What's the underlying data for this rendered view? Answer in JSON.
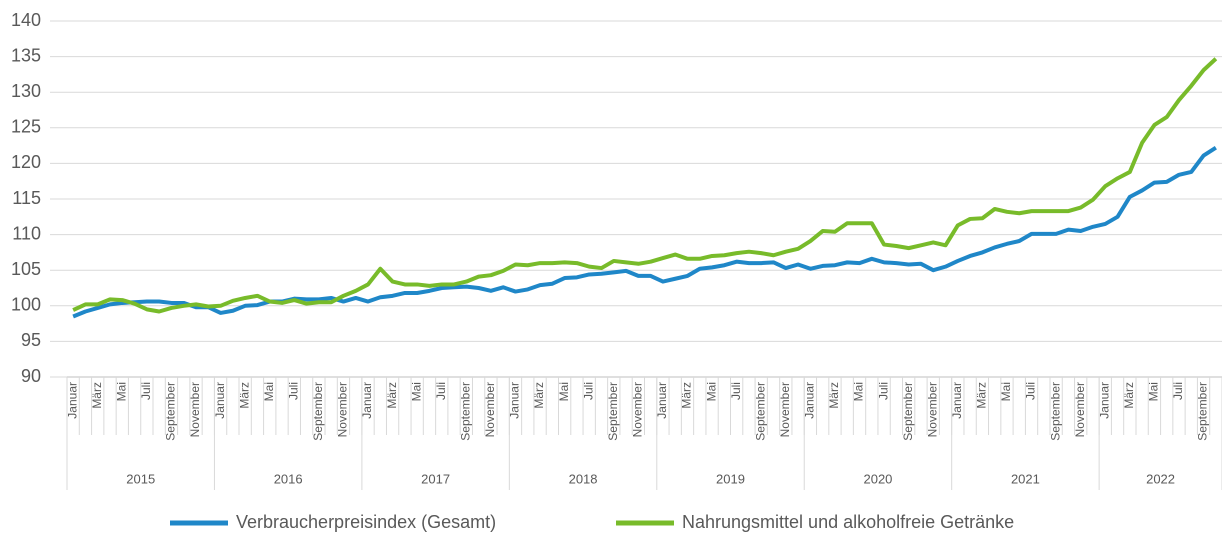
{
  "chart_data": {
    "type": "line",
    "categories": [
      "Januar",
      null,
      "März",
      null,
      "Mai",
      null,
      "Juli",
      null,
      "September",
      null,
      "November",
      null,
      "Januar",
      null,
      "März",
      null,
      "Mai",
      null,
      "Juli",
      null,
      "September",
      null,
      "November",
      null,
      "Januar",
      null,
      "März",
      null,
      "Mai",
      null,
      "Juli",
      null,
      "September",
      null,
      "November",
      null,
      "Januar",
      null,
      "März",
      null,
      "Mai",
      null,
      "Juli",
      null,
      "September",
      null,
      "November",
      null,
      "Januar",
      null,
      "März",
      null,
      "Mai",
      null,
      "Juli",
      null,
      "September",
      null,
      "November",
      null,
      "Januar",
      null,
      "März",
      null,
      "Mai",
      null,
      "Juli",
      null,
      "September",
      null,
      "November",
      null,
      "Januar",
      null,
      "März",
      null,
      "Mai",
      null,
      "Juli",
      null,
      "September",
      null,
      "November",
      null,
      "Januar",
      null,
      "März",
      null,
      "Mai",
      null,
      "Juli",
      null,
      "September",
      null
    ],
    "groups": [
      "2015",
      "2016",
      "2017",
      "2018",
      "2019",
      "2020",
      "2021",
      "2022"
    ],
    "series": [
      {
        "name": "Verbraucherpreisindex (Gesamt)",
        "color": "#1f87c8",
        "values": [
          98.5,
          99.2,
          99.7,
          100.2,
          100.4,
          100.5,
          100.6,
          100.6,
          100.4,
          100.4,
          99.8,
          99.8,
          99.0,
          99.3,
          100.0,
          100.1,
          100.6,
          100.6,
          101.0,
          100.9,
          100.9,
          101.1,
          100.6,
          101.1,
          100.6,
          101.2,
          101.4,
          101.8,
          101.8,
          102.1,
          102.5,
          102.6,
          102.7,
          102.5,
          102.1,
          102.6,
          102.0,
          102.3,
          102.9,
          103.1,
          103.9,
          104.0,
          104.4,
          104.5,
          104.7,
          104.9,
          104.2,
          104.2,
          103.4,
          103.8,
          104.2,
          105.2,
          105.4,
          105.7,
          106.2,
          106.0,
          106.0,
          106.1,
          105.3,
          105.8,
          105.2,
          105.6,
          105.7,
          106.1,
          106.0,
          106.6,
          106.1,
          106.0,
          105.8,
          105.9,
          105.0,
          105.5,
          106.3,
          107.0,
          107.5,
          108.2,
          108.7,
          109.1,
          110.1,
          110.1,
          110.1,
          110.7,
          110.5,
          111.1,
          111.5,
          112.5,
          115.3,
          116.2,
          117.3,
          117.4,
          118.4,
          118.8,
          121.1,
          122.2
        ]
      },
      {
        "name": "Nahrungsmittel und alkoholfreie Getränke",
        "color": "#78bb2a",
        "values": [
          99.4,
          100.2,
          100.2,
          100.9,
          100.8,
          100.3,
          99.5,
          99.2,
          99.7,
          100.0,
          100.2,
          99.9,
          100.0,
          100.7,
          101.1,
          101.4,
          100.6,
          100.4,
          100.8,
          100.3,
          100.5,
          100.5,
          101.4,
          102.1,
          103.0,
          105.2,
          103.4,
          103.0,
          103.0,
          102.8,
          103.0,
          103.0,
          103.4,
          104.1,
          104.3,
          104.9,
          105.8,
          105.7,
          106.0,
          106.0,
          106.1,
          106.0,
          105.5,
          105.3,
          106.3,
          106.1,
          105.9,
          106.2,
          106.7,
          107.2,
          106.6,
          106.6,
          107.0,
          107.1,
          107.4,
          107.6,
          107.4,
          107.1,
          107.6,
          108.0,
          109.1,
          110.5,
          110.4,
          111.6,
          111.6,
          111.6,
          108.6,
          108.4,
          108.1,
          108.5,
          108.9,
          108.5,
          111.3,
          112.2,
          112.3,
          113.6,
          113.2,
          113.0,
          113.3,
          113.3,
          113.3,
          113.3,
          113.8,
          114.9,
          116.8,
          117.9,
          118.8,
          122.9,
          125.4,
          126.5,
          128.9,
          130.9,
          133.1,
          134.7
        ]
      }
    ],
    "ylim": [
      90,
      140
    ],
    "yticks": [
      90,
      95,
      100,
      105,
      110,
      115,
      120,
      125,
      130,
      135,
      140
    ],
    "grid": true
  }
}
